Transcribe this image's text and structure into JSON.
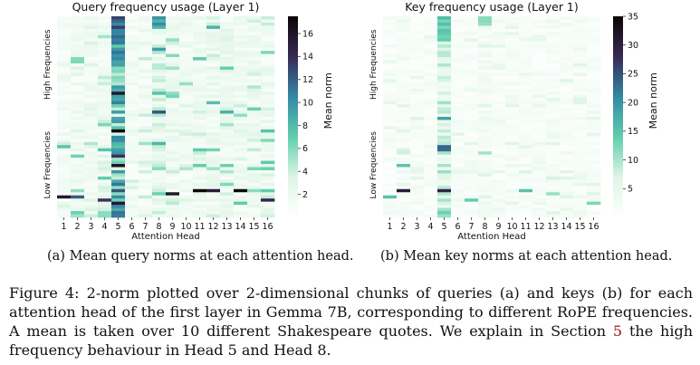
{
  "chart_data": [
    {
      "type": "heatmap",
      "title": "Query frequency usage (Layer 1)",
      "xlabel": "Attention Head",
      "y_band_labels": [
        "High Frequencies",
        "Low Frequencies"
      ],
      "x_ticks": [
        "1",
        "2",
        "3",
        "4",
        "5",
        "6",
        "7",
        "8",
        "9",
        "10",
        "11",
        "12",
        "13",
        "14",
        "15",
        "16"
      ],
      "colorbar_label": "Mean norm",
      "colorbar_ticks": [
        "2",
        "4",
        "6",
        "8",
        "10",
        "12",
        "14",
        "16"
      ],
      "vmin": 0,
      "vmax": 17.5,
      "rows": 64,
      "colormap": [
        "#ffffff",
        "#def5e5",
        "#60ceac",
        "#3487a6",
        "#382a54",
        "#0b0405"
      ],
      "column_means": [
        1.3,
        1.7,
        1.6,
        1.9,
        7.5,
        1.2,
        1.3,
        3.2,
        1.9,
        1.6,
        1.8,
        2.1,
        2.2,
        1.8,
        1.8,
        2.0
      ],
      "seed": 11,
      "highlights": [
        {
          "head": 5,
          "rows": [
            0,
            1,
            2,
            3,
            4,
            5,
            6,
            7,
            8
          ],
          "value": 12
        },
        {
          "head": 8,
          "rows": [
            0,
            1,
            2,
            3
          ],
          "value": 9
        },
        {
          "head": 1,
          "row": 57,
          "value": 16
        },
        {
          "head": 2,
          "row": 57,
          "value": 13
        },
        {
          "head": 4,
          "row": 58,
          "value": 15
        },
        {
          "head": 9,
          "row": 56,
          "value": 15
        },
        {
          "head": 11,
          "row": 55,
          "value": 16
        },
        {
          "head": 12,
          "row": 55,
          "value": 15
        },
        {
          "head": 14,
          "row": 55,
          "value": 17
        },
        {
          "head": 16,
          "row": 58,
          "value": 15
        },
        {
          "head": 1,
          "row": 41,
          "value": 7
        },
        {
          "head": 11,
          "row": 47,
          "value": 7
        }
      ]
    },
    {
      "type": "heatmap",
      "title": "Key frequency usage (Layer 1)",
      "xlabel": "Attention Head",
      "y_band_labels": [
        "High Frequencies",
        "Low Frequencies"
      ],
      "x_ticks": [
        "1",
        "2",
        "3",
        "4",
        "5",
        "6",
        "7",
        "8",
        "9",
        "10",
        "11",
        "12",
        "13",
        "14",
        "15",
        "16"
      ],
      "colorbar_label": "Mean norm",
      "colorbar_ticks": [
        "5",
        "10",
        "15",
        "20",
        "25",
        "30",
        "35"
      ],
      "vmin": 0,
      "vmax": 35,
      "rows": 64,
      "colormap": [
        "#ffffff",
        "#def5e5",
        "#60ceac",
        "#3487a6",
        "#382a54",
        "#0b0405"
      ],
      "column_means": [
        1.5,
        2.0,
        1.8,
        1.6,
        7.5,
        1.7,
        1.7,
        3.0,
        1.8,
        1.7,
        1.8,
        2.0,
        2.0,
        1.9,
        1.9,
        1.7
      ],
      "seed": 29,
      "highlights": [
        {
          "head": 5,
          "rows": [
            0,
            1,
            2,
            3,
            4,
            5,
            6,
            7
          ],
          "value": 14
        },
        {
          "head": 8,
          "rows": [
            0,
            1,
            2
          ],
          "value": 11
        },
        {
          "head": 2,
          "row": 55,
          "value": 33
        },
        {
          "head": 2,
          "row": 47,
          "value": 16
        },
        {
          "head": 1,
          "row": 57,
          "value": 14
        },
        {
          "head": 11,
          "row": 55,
          "value": 16
        },
        {
          "head": 7,
          "row": 58,
          "value": 13
        },
        {
          "head": 13,
          "row": 56,
          "value": 12
        },
        {
          "head": 16,
          "row": 59,
          "value": 12
        }
      ]
    }
  ],
  "captions": {
    "a": "(a) Mean query norms at each attention head.",
    "b": "(b) Mean key norms at each attention head.",
    "figure_before": "Figure 4: 2-norm plotted over 2-dimensional chunks of queries (a) and keys (b) for each attention head of the first layer in Gemma 7B, corresponding to different RoPE frequencies. A mean is taken over 10 different Shakespeare quotes. We explain in Section ",
    "figure_ref": "5",
    "figure_after": " the high frequency behaviour in Head 5 and Head 8."
  }
}
